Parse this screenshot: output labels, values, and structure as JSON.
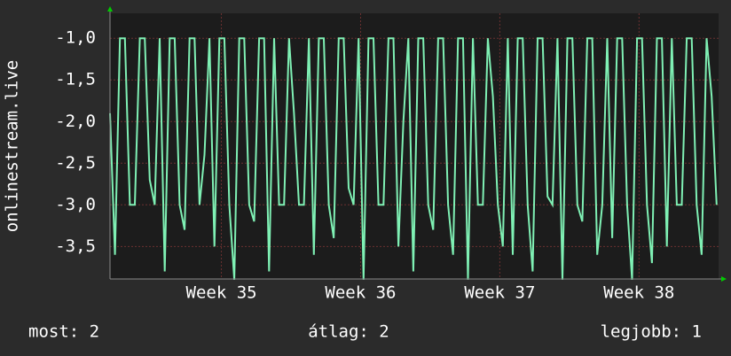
{
  "chart_data": {
    "type": "line",
    "y_label": "onlinestream.live",
    "x": [
      0,
      0.25,
      0.5,
      0.75,
      1,
      1.25,
      1.5,
      1.75,
      2,
      2.25,
      2.5,
      2.75,
      3,
      3.25,
      3.5,
      3.75,
      4,
      4.25,
      4.5,
      4.75,
      5,
      5.25,
      5.5,
      5.75,
      6,
      6.25,
      6.5,
      6.75,
      7,
      7.25,
      7.5,
      7.75,
      8,
      8.25,
      8.5,
      8.75,
      9,
      9.25,
      9.5,
      9.75,
      10,
      10.25,
      10.5,
      10.75,
      11,
      11.25,
      11.5,
      11.75,
      12,
      12.25,
      12.5,
      12.75,
      13,
      13.25,
      13.5,
      13.75,
      14,
      14.25,
      14.5,
      14.75,
      15,
      15.25,
      15.5,
      15.75,
      16,
      16.25,
      16.5,
      16.75,
      17,
      17.25,
      17.5,
      17.75,
      18,
      18.25,
      18.5,
      18.75,
      19,
      19.25,
      19.5,
      19.75,
      20,
      20.25,
      20.5,
      20.75,
      21,
      21.25,
      21.5,
      21.75,
      22,
      22.25,
      22.5,
      22.75,
      23,
      23.25,
      23.5,
      23.75,
      24,
      24.25,
      24.5,
      24.75,
      25,
      25.25,
      25.5,
      25.75,
      26,
      26.25,
      26.5,
      26.75,
      27,
      27.25,
      27.5,
      27.75,
      28,
      28.25,
      28.5,
      28.75,
      29,
      29.25,
      29.5,
      29.75,
      30,
      30.25,
      30.5
    ],
    "series": [
      {
        "name": "onlinestream.live",
        "color": "#7ff0b4",
        "values": [
          -1.9,
          -3.6,
          -1,
          -1,
          -3,
          -3,
          -1,
          -1,
          -2.7,
          -3,
          -1,
          -3.8,
          -1,
          -1,
          -3,
          -3.3,
          -1,
          -1,
          -3,
          -2.4,
          -1,
          -3.5,
          -1,
          -1,
          -3,
          -3.9,
          -1,
          -1,
          -3,
          -3.2,
          -1,
          -1,
          -3.8,
          -1,
          -3,
          -3,
          -1,
          -1.9,
          -3,
          -3,
          -1,
          -3.6,
          -1,
          -1,
          -3,
          -3.4,
          -1,
          -1,
          -2.8,
          -3,
          -1,
          -3.9,
          -1,
          -1,
          -3,
          -3,
          -1,
          -1,
          -3.5,
          -2,
          -1,
          -3.8,
          -1,
          -1,
          -3,
          -3.3,
          -1,
          -1,
          -3,
          -3.6,
          -1,
          -1,
          -3.9,
          -1,
          -3,
          -3,
          -1,
          -1.7,
          -3,
          -3.5,
          -1,
          -3.6,
          -1,
          -1,
          -3,
          -3.8,
          -1,
          -1,
          -2.9,
          -3,
          -1,
          -3.9,
          -1,
          -1,
          -3,
          -3.2,
          -1,
          -1,
          -3.6,
          -3,
          -1,
          -3.4,
          -1,
          -1,
          -3,
          -3.9,
          -1,
          -1,
          -3,
          -3.7,
          -1,
          -1,
          -3.5,
          -1,
          -3,
          -3,
          -1,
          -1,
          -3,
          -3.6,
          -1,
          -1.7,
          -3
        ]
      }
    ],
    "xlim": [
      0,
      30.6
    ],
    "xticks": [
      {
        "value": 5.6,
        "label": "Week 35"
      },
      {
        "value": 12.6,
        "label": "Week 36"
      },
      {
        "value": 19.6,
        "label": "Week 37"
      },
      {
        "value": 26.6,
        "label": "Week 38"
      }
    ],
    "ylim": [
      -3.89,
      -0.7
    ],
    "yticks": [
      {
        "value": -1.0,
        "label": "-1,0"
      },
      {
        "value": -1.5,
        "label": "-1,5"
      },
      {
        "value": -2.0,
        "label": "-2,0"
      },
      {
        "value": -2.5,
        "label": "-2,5"
      },
      {
        "value": -3.0,
        "label": "-3,0"
      },
      {
        "value": -3.5,
        "label": "-3,5"
      }
    ],
    "grid": true,
    "footer": [
      "most: 2",
      "átlag: 2",
      "legjobb: 1"
    ]
  }
}
